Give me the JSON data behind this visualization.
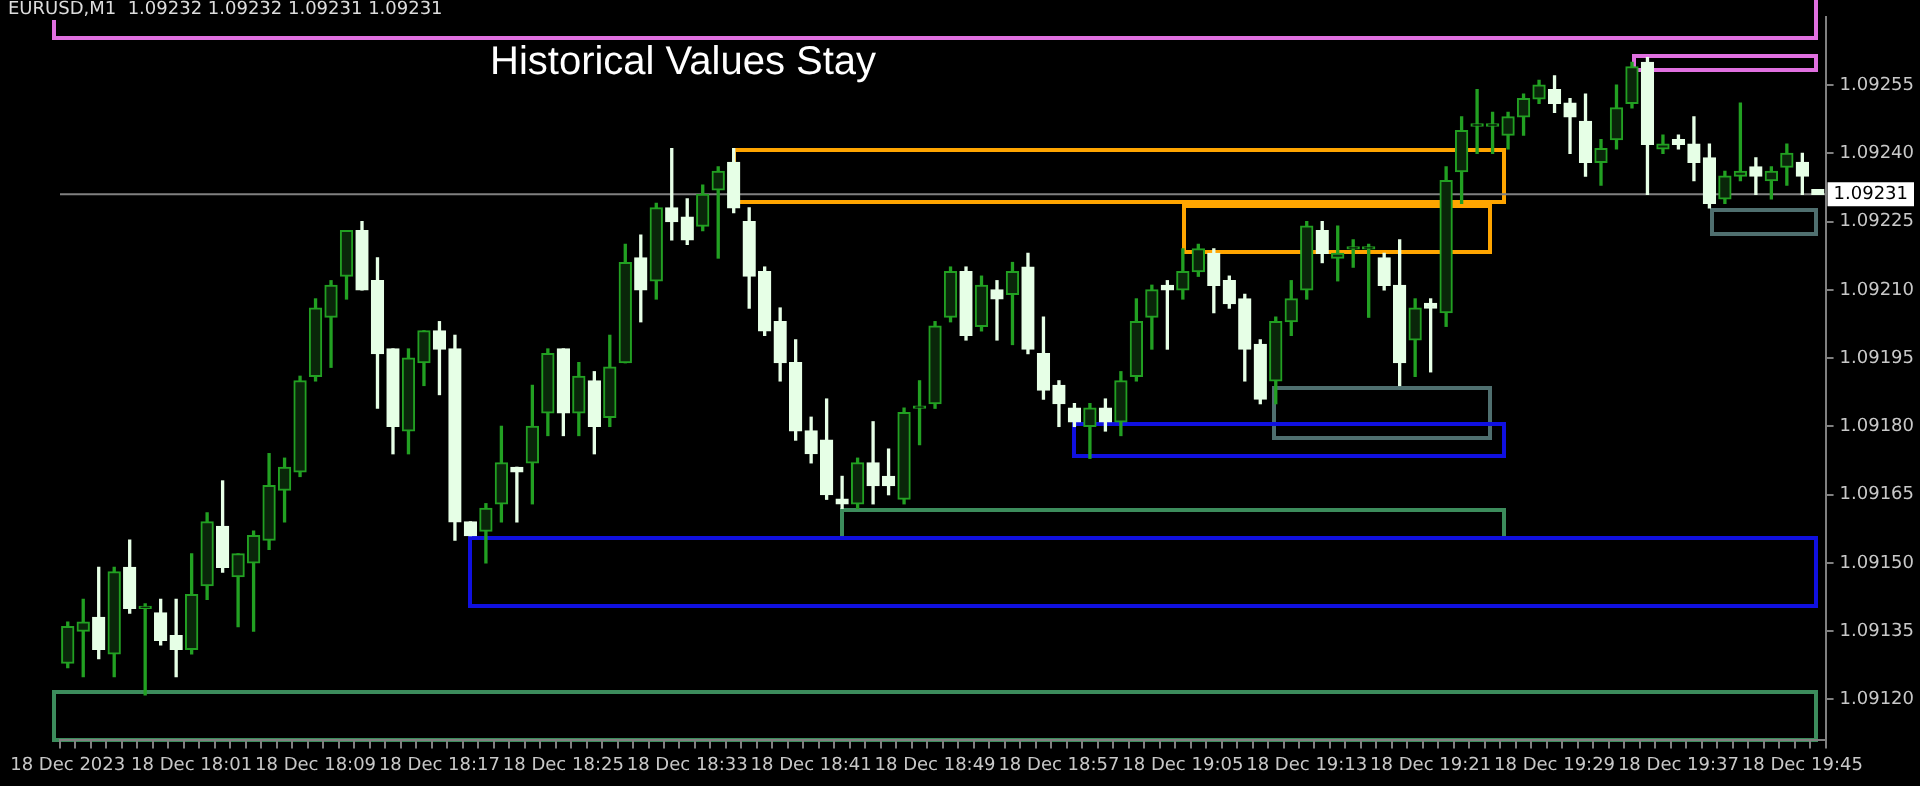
{
  "chart_data": {
    "type": "candlestick",
    "title": "Historical Values Stay",
    "subtitle": "EURUSD,M1  1.09232 1.09232 1.09231 1.09231",
    "colors": [
      "#22a022",
      "#22a022",
      "#e6ffe6",
      "#22a022",
      "#e6ffe6",
      "#22a022",
      "#e6ffe6",
      "#e6ffe6",
      "#22a022",
      "#22a022",
      "#e6ffe6",
      "#22a022",
      "#22a022",
      "#22a022",
      "#22a022",
      "#22a022",
      "#22a022",
      "#22a022",
      "#22a022",
      "#e6ffe6",
      "#e6ffe6",
      "#e6ffe6",
      "#22a022",
      "#22a022",
      "#e6ffe6",
      "#e6ffe6",
      "#e6ffe6",
      "#22a022",
      "#22a022",
      "#e6ffe6",
      "#22a022",
      "#22a022",
      "#e6ffe6",
      "#22a022",
      "#e6ffe6",
      "#22a022",
      "#22a022",
      "#e6ffe6",
      "#22a022",
      "#e6ffe6",
      "#e6ffe6",
      "#22a022",
      "#22a022",
      "#e6ffe6",
      "#e6ffe6",
      "#e6ffe6",
      "#e6ffe6",
      "#e6ffe6",
      "#e6ffe6",
      "#e6ffe6",
      "#e6ffe6",
      "#22a022",
      "#e6ffe6",
      "#e6ffe6",
      "#22a022",
      "#22a022",
      "#22a022",
      "#22a022",
      "#e6ffe6",
      "#22a022",
      "#e6ffe6",
      "#22a022",
      "#e6ffe6",
      "#e6ffe6",
      "#e6ffe6",
      "#e6ffe6",
      "#22a022",
      "#e6ffe6",
      "#22a022",
      "#22a022",
      "#22a022",
      "#e6ffe6",
      "#22a022",
      "#22a022",
      "#e6ffe6",
      "#e6ffe6",
      "#e6ffe6",
      "#e6ffe6",
      "#22a022",
      "#22a022",
      "#22a022",
      "#e6ffe6",
      "#22a022",
      "#22a022",
      "#22a022",
      "#e6ffe6",
      "#e6ffe6",
      "#22a022",
      "#e6ffe6",
      "#22a022",
      "#22a022",
      "#22a022",
      "#22a022",
      "#22a022",
      "#22a022",
      "#22a022",
      "#e6ffe6",
      "#e6ffe6",
      "#e6ffe6",
      "#22a022",
      "#22a022",
      "#22a022",
      "#e6ffe6",
      "#22a022",
      "#e6ffe6",
      "#e6ffe6",
      "#e6ffe6",
      "#22a022",
      "#22a022",
      "#e6ffe6",
      "#22a022",
      "#22a022",
      "#e6ffe6",
      "#e6ffe6"
    ],
    "categories": [
      "18 Dec 2023",
      null,
      null,
      null,
      null,
      null,
      null,
      null,
      "18 Dec 18:01",
      null,
      null,
      null,
      null,
      null,
      null,
      null,
      "18 Dec 18:09",
      null,
      null,
      null,
      null,
      null,
      null,
      null,
      "18 Dec 18:17",
      null,
      null,
      null,
      null,
      null,
      null,
      null,
      "18 Dec 18:25",
      null,
      null,
      null,
      null,
      null,
      null,
      null,
      "18 Dec 18:33",
      null,
      null,
      null,
      null,
      null,
      null,
      null,
      "18 Dec 18:41",
      null,
      null,
      null,
      null,
      null,
      null,
      null,
      "18 Dec 18:49",
      null,
      null,
      null,
      null,
      null,
      null,
      null,
      "18 Dec 18:57",
      null,
      null,
      null,
      null,
      null,
      null,
      null,
      "18 Dec 19:05",
      null,
      null,
      null,
      null,
      null,
      null,
      null,
      "18 Dec 19:13",
      null,
      null,
      null,
      null,
      null,
      null,
      null,
      "18 Dec 19:21",
      null,
      null,
      null,
      null,
      null,
      null,
      null,
      "18 Dec 19:29",
      null,
      null,
      null,
      null,
      null,
      null,
      null,
      "18 Dec 19:37",
      null,
      null,
      null,
      null,
      null,
      null,
      null,
      "18 Dec 19:45",
      null
    ],
    "ohlc": [
      [
        1.09128,
        1.09137,
        1.09127,
        1.09136
      ],
      [
        1.09135,
        1.09142,
        1.09125,
        1.09137
      ],
      [
        1.09138,
        1.09149,
        1.09129,
        1.09131
      ],
      [
        1.0913,
        1.09149,
        1.09125,
        1.09148
      ],
      [
        1.09149,
        1.09155,
        1.09139,
        1.0914
      ],
      [
        1.0914,
        1.09141,
        1.09121,
        1.0914
      ],
      [
        1.09139,
        1.09142,
        1.09132,
        1.09133
      ],
      [
        1.09134,
        1.09142,
        1.09125,
        1.09131
      ],
      [
        1.09131,
        1.09152,
        1.0913,
        1.09143
      ],
      [
        1.09145,
        1.09161,
        1.09142,
        1.09159
      ],
      [
        1.09158,
        1.09168,
        1.09148,
        1.09149
      ],
      [
        1.09147,
        1.09152,
        1.09136,
        1.09152
      ],
      [
        1.0915,
        1.09157,
        1.09135,
        1.09156
      ],
      [
        1.09155,
        1.09174,
        1.09153,
        1.09167
      ],
      [
        1.09166,
        1.09173,
        1.09159,
        1.09171
      ],
      [
        1.0917,
        1.09191,
        1.09169,
        1.0919
      ],
      [
        1.09191,
        1.09208,
        1.0919,
        1.09206
      ],
      [
        1.09204,
        1.09212,
        1.09193,
        1.09211
      ],
      [
        1.09213,
        1.09223,
        1.09208,
        1.09223
      ],
      [
        1.09223,
        1.09225,
        1.0921,
        1.0921
      ],
      [
        1.09212,
        1.09217,
        1.09184,
        1.09196
      ],
      [
        1.09197,
        1.09197,
        1.09174,
        1.0918
      ],
      [
        1.09179,
        1.09197,
        1.09174,
        1.09195
      ],
      [
        1.09194,
        1.09201,
        1.09189,
        1.09201
      ],
      [
        1.09201,
        1.09203,
        1.09187,
        1.09197
      ],
      [
        1.09197,
        1.092,
        1.09155,
        1.09159
      ],
      [
        1.09159,
        1.09159,
        1.09156,
        1.09156
      ],
      [
        1.09157,
        1.09163,
        1.0915,
        1.09162
      ],
      [
        1.09163,
        1.0918,
        1.09159,
        1.09172
      ],
      [
        1.09171,
        1.09171,
        1.09159,
        1.0917
      ],
      [
        1.09172,
        1.09189,
        1.09163,
        1.0918
      ],
      [
        1.09183,
        1.09197,
        1.09178,
        1.09196
      ],
      [
        1.09197,
        1.09197,
        1.09178,
        1.09183
      ],
      [
        1.09183,
        1.09194,
        1.09178,
        1.09191
      ],
      [
        1.0919,
        1.09192,
        1.09174,
        1.0918
      ],
      [
        1.09182,
        1.092,
        1.0918,
        1.09193
      ],
      [
        1.09194,
        1.0922,
        1.09194,
        1.09216
      ],
      [
        1.09217,
        1.09222,
        1.09203,
        1.0921
      ],
      [
        1.09212,
        1.09229,
        1.09208,
        1.09228
      ],
      [
        1.09228,
        1.09241,
        1.09221,
        1.09225
      ],
      [
        1.09226,
        1.0923,
        1.0922,
        1.09221
      ],
      [
        1.09224,
        1.09233,
        1.09223,
        1.09231
      ],
      [
        1.09232,
        1.09237,
        1.09217,
        1.09236
      ],
      [
        1.09238,
        1.09241,
        1.09227,
        1.09228
      ],
      [
        1.09225,
        1.09228,
        1.09206,
        1.09213
      ],
      [
        1.09214,
        1.09215,
        1.092,
        1.09201
      ],
      [
        1.09203,
        1.09206,
        1.0919,
        1.09194
      ],
      [
        1.09194,
        1.09199,
        1.09177,
        1.09179
      ],
      [
        1.09179,
        1.09182,
        1.09172,
        1.09174
      ],
      [
        1.09177,
        1.09186,
        1.09164,
        1.09165
      ],
      [
        1.09164,
        1.09169,
        1.09162,
        1.09163
      ],
      [
        1.09163,
        1.09173,
        1.09162,
        1.09172
      ],
      [
        1.09172,
        1.09181,
        1.09163,
        1.09167
      ],
      [
        1.09169,
        1.09175,
        1.09165,
        1.09167
      ],
      [
        1.09164,
        1.09184,
        1.09163,
        1.09183
      ],
      [
        1.09184,
        1.0919,
        1.09176,
        1.09184
      ],
      [
        1.09185,
        1.09203,
        1.09184,
        1.09202
      ],
      [
        1.09204,
        1.09215,
        1.09203,
        1.09214
      ],
      [
        1.09214,
        1.09215,
        1.09199,
        1.092
      ],
      [
        1.09202,
        1.09213,
        1.09201,
        1.09211
      ],
      [
        1.0921,
        1.09212,
        1.09199,
        1.09208
      ],
      [
        1.09209,
        1.09216,
        1.09198,
        1.09214
      ],
      [
        1.09215,
        1.09218,
        1.09196,
        1.09197
      ],
      [
        1.09196,
        1.09204,
        1.09186,
        1.09188
      ],
      [
        1.09189,
        1.0919,
        1.0918,
        1.09185
      ],
      [
        1.09184,
        1.09185,
        1.0918,
        1.09181
      ],
      [
        1.0918,
        1.09185,
        1.09173,
        1.09184
      ],
      [
        1.09184,
        1.09186,
        1.09179,
        1.09181
      ],
      [
        1.09181,
        1.09192,
        1.09178,
        1.0919
      ],
      [
        1.09191,
        1.09208,
        1.0919,
        1.09203
      ],
      [
        1.09204,
        1.09211,
        1.09197,
        1.0921
      ],
      [
        1.09211,
        1.09212,
        1.09197,
        1.0921
      ],
      [
        1.0921,
        1.09219,
        1.09208,
        1.09214
      ],
      [
        1.09214,
        1.0922,
        1.09213,
        1.09219
      ],
      [
        1.09218,
        1.09219,
        1.09205,
        1.09211
      ],
      [
        1.09212,
        1.09213,
        1.09206,
        1.09207
      ],
      [
        1.09208,
        1.09209,
        1.0919,
        1.09197
      ],
      [
        1.09198,
        1.09199,
        1.09185,
        1.09186
      ],
      [
        1.0919,
        1.09204,
        1.09185,
        1.09203
      ],
      [
        1.09203,
        1.09212,
        1.092,
        1.09208
      ],
      [
        1.0921,
        1.09225,
        1.09208,
        1.09224
      ],
      [
        1.09223,
        1.09225,
        1.09216,
        1.09218
      ],
      [
        1.09217,
        1.09224,
        1.09212,
        1.09218
      ],
      [
        1.09219,
        1.09221,
        1.09215,
        1.09219
      ],
      [
        1.09219,
        1.0922,
        1.09204,
        1.09219
      ],
      [
        1.09217,
        1.09218,
        1.0921,
        1.09211
      ],
      [
        1.09211,
        1.09221,
        1.09189,
        1.09194
      ],
      [
        1.09199,
        1.09208,
        1.09191,
        1.09206
      ],
      [
        1.09207,
        1.09208,
        1.09192,
        1.09206
      ],
      [
        1.09205,
        1.09237,
        1.09202,
        1.09234
      ],
      [
        1.09236,
        1.09248,
        1.09229,
        1.09245
      ],
      [
        1.09246,
        1.09254,
        1.0924,
        1.09246
      ],
      [
        1.09246,
        1.09249,
        1.0924,
        1.09246
      ],
      [
        1.09244,
        1.09249,
        1.09241,
        1.09248
      ],
      [
        1.09248,
        1.09253,
        1.09244,
        1.09252
      ],
      [
        1.09252,
        1.09256,
        1.09251,
        1.09255
      ],
      [
        1.09254,
        1.09257,
        1.09249,
        1.09251
      ],
      [
        1.09251,
        1.09252,
        1.0924,
        1.09248
      ],
      [
        1.09247,
        1.09253,
        1.09235,
        1.09238
      ],
      [
        1.09238,
        1.09243,
        1.09233,
        1.09241
      ],
      [
        1.09243,
        1.09255,
        1.09241,
        1.0925
      ],
      [
        1.09251,
        1.0926,
        1.0925,
        1.09259
      ],
      [
        1.0926,
        1.09261,
        1.09231,
        1.09242
      ],
      [
        1.09241,
        1.09244,
        1.0924,
        1.09242
      ],
      [
        1.09243,
        1.09244,
        1.09241,
        1.09242
      ],
      [
        1.09242,
        1.09248,
        1.09234,
        1.09238
      ],
      [
        1.09239,
        1.09242,
        1.09228,
        1.09229
      ],
      [
        1.0923,
        1.09236,
        1.09229,
        1.09235
      ],
      [
        1.09235,
        1.09251,
        1.09234,
        1.09236
      ],
      [
        1.09237,
        1.09239,
        1.09231,
        1.09235
      ],
      [
        1.09234,
        1.09237,
        1.0923,
        1.09236
      ],
      [
        1.09237,
        1.09242,
        1.09233,
        1.0924
      ],
      [
        1.09238,
        1.0924,
        1.09231,
        1.09235
      ],
      [
        1.09232,
        1.09232,
        1.09231,
        1.09231
      ]
    ],
    "ylim": [
      1.09111,
      1.0927
    ],
    "yticks": [
      {
        "value": 1.0912,
        "label": "1.09120"
      },
      {
        "value": 1.09135,
        "label": "1.09135"
      },
      {
        "value": 1.0915,
        "label": "1.09150"
      },
      {
        "value": 1.09165,
        "label": "1.09165"
      },
      {
        "value": 1.0918,
        "label": "1.09180"
      },
      {
        "value": 1.09195,
        "label": "1.09195"
      },
      {
        "value": 1.0921,
        "label": "1.09210"
      },
      {
        "value": 1.09225,
        "label": "1.09225"
      },
      {
        "value": 1.0924,
        "label": "1.09240"
      },
      {
        "value": 1.09255,
        "label": "1.09255"
      }
    ],
    "ref_lines": [
      {
        "axis": "y",
        "value": 1.09231,
        "label": "1.09231",
        "color": "#808080"
      }
    ],
    "legend": false
  }
}
